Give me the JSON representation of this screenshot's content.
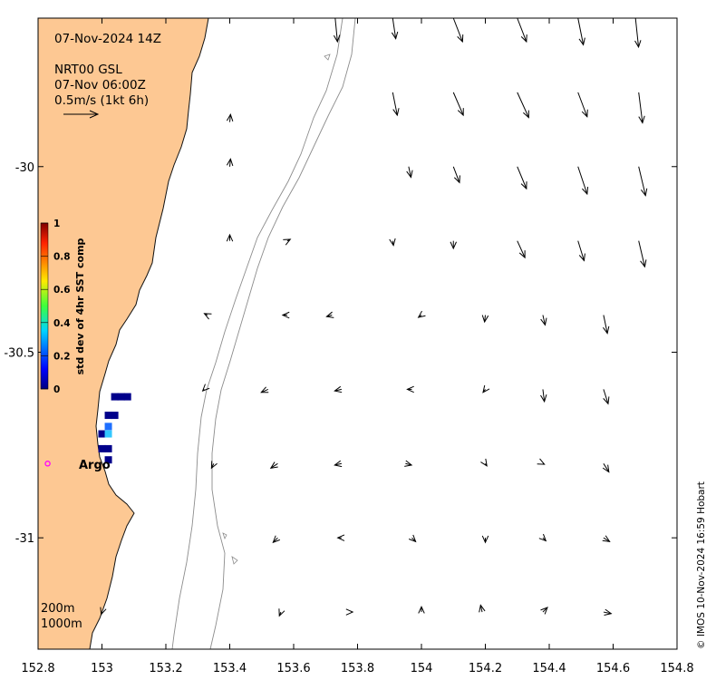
{
  "header": {
    "date_line": "07-Nov-2024 14Z",
    "product": "NRT00 GSL",
    "product_time": "07-Nov 06:00Z",
    "scale_label": "0.5m/s (1kt 6h)"
  },
  "axes": {
    "x_ticks": [
      "152.8",
      "153",
      "153.2",
      "153.4",
      "153.6",
      "153.8",
      "154",
      "154.2",
      "154.4",
      "154.6",
      "154.8"
    ],
    "y_ticks": [
      "-30",
      "-30.5",
      "-31"
    ],
    "x_range": [
      152.8,
      154.8
    ],
    "y_range": [
      -31.3,
      -29.6
    ]
  },
  "colorbar": {
    "title": "std dev of 4hr SST comp",
    "ticks": [
      "0",
      "0.2",
      "0.4",
      "0.6",
      "0.8",
      "1"
    ],
    "range": [
      0,
      1
    ]
  },
  "isobath_labels": [
    "200m",
    "1000m"
  ],
  "argo": {
    "label": "Argo",
    "color": "#ff00ff"
  },
  "credit": "© IMOS 10-Nov-2024 16:59 Hobart",
  "colors": {
    "land": "#fdc893",
    "coast": "#111111",
    "isobath": "#8c8c8c",
    "arrow": "#000000"
  },
  "chart_data": {
    "type": "vector-field",
    "arrows": [
      [
        153.73,
        -29.6,
        0.03,
        -0.31
      ],
      [
        153.91,
        -29.6,
        0.04,
        -0.27
      ],
      [
        154.1,
        -29.6,
        0.12,
        -0.31
      ],
      [
        154.3,
        -29.6,
        0.12,
        -0.31
      ],
      [
        154.49,
        -29.6,
        0.07,
        -0.35
      ],
      [
        154.67,
        -29.6,
        0.04,
        -0.38
      ],
      [
        153.4,
        -29.88,
        0.01,
        0.1
      ],
      [
        153.91,
        -29.8,
        0.06,
        -0.3
      ],
      [
        154.1,
        -29.8,
        0.13,
        -0.3
      ],
      [
        154.3,
        -29.8,
        0.15,
        -0.33
      ],
      [
        154.49,
        -29.8,
        0.12,
        -0.32
      ],
      [
        154.68,
        -29.8,
        0.05,
        -0.4
      ],
      [
        153.4,
        -30.0,
        0.01,
        0.1
      ],
      [
        153.96,
        -30.0,
        0.03,
        -0.14
      ],
      [
        154.1,
        -30.0,
        0.08,
        -0.21
      ],
      [
        154.3,
        -30.0,
        0.12,
        -0.29
      ],
      [
        154.49,
        -30.0,
        0.12,
        -0.36
      ],
      [
        154.68,
        -30.0,
        0.09,
        -0.38
      ],
      [
        153.4,
        -30.2,
        0.0,
        0.08
      ],
      [
        153.58,
        -30.2,
        0.04,
        0.02
      ],
      [
        153.91,
        -30.2,
        0.01,
        -0.06
      ],
      [
        154.1,
        -30.2,
        0.0,
        -0.1
      ],
      [
        154.3,
        -30.2,
        0.1,
        -0.22
      ],
      [
        154.49,
        -30.2,
        0.08,
        -0.26
      ],
      [
        154.68,
        -30.2,
        0.08,
        -0.34
      ],
      [
        153.33,
        -30.4,
        -0.04,
        0.02
      ],
      [
        153.58,
        -30.4,
        -0.06,
        0.0
      ],
      [
        153.72,
        -30.4,
        -0.07,
        -0.02
      ],
      [
        154.0,
        -30.4,
        -0.04,
        -0.03
      ],
      [
        154.2,
        -30.4,
        -0.01,
        -0.09
      ],
      [
        154.38,
        -30.4,
        0.03,
        -0.13
      ],
      [
        154.57,
        -30.4,
        0.05,
        -0.24
      ],
      [
        153.32,
        -30.6,
        -0.02,
        -0.02
      ],
      [
        153.52,
        -30.6,
        -0.09,
        -0.04
      ],
      [
        153.75,
        -30.6,
        -0.09,
        -0.02
      ],
      [
        153.97,
        -30.6,
        -0.06,
        0.0
      ],
      [
        154.2,
        -30.6,
        -0.03,
        -0.04
      ],
      [
        154.38,
        -30.6,
        0.02,
        -0.16
      ],
      [
        154.57,
        -30.6,
        0.06,
        -0.19
      ],
      [
        153.35,
        -30.8,
        -0.03,
        -0.06
      ],
      [
        153.55,
        -30.8,
        -0.09,
        -0.06
      ],
      [
        153.75,
        -30.8,
        -0.09,
        -0.02
      ],
      [
        153.95,
        -30.8,
        0.08,
        -0.02
      ],
      [
        154.2,
        -30.8,
        0.02,
        -0.03
      ],
      [
        154.38,
        -30.8,
        0.02,
        -0.01
      ],
      [
        154.57,
        -30.8,
        0.07,
        -0.11
      ],
      [
        153.55,
        -31.0,
        -0.06,
        -0.06
      ],
      [
        153.75,
        -31.0,
        -0.05,
        0.0
      ],
      [
        153.97,
        -31.0,
        0.05,
        -0.05
      ],
      [
        154.2,
        -31.0,
        0.0,
        -0.06
      ],
      [
        154.38,
        -31.0,
        0.04,
        -0.04
      ],
      [
        154.57,
        -31.0,
        0.08,
        -0.05
      ],
      [
        153.0,
        -31.2,
        -0.01,
        -0.03
      ],
      [
        153.56,
        -31.2,
        -0.02,
        -0.05
      ],
      [
        153.78,
        -31.2,
        0.02,
        0.0
      ],
      [
        154.0,
        -31.2,
        0.0,
        0.07
      ],
      [
        154.19,
        -31.2,
        -0.02,
        0.09
      ],
      [
        154.38,
        -31.2,
        0.06,
        0.06
      ],
      [
        154.57,
        -31.2,
        0.1,
        -0.02
      ]
    ],
    "sst_std_cells": [
      [
        153.04,
        -30.62,
        0.0
      ],
      [
        153.06,
        -30.62,
        0.0
      ],
      [
        153.08,
        -30.62,
        0.0
      ],
      [
        153.02,
        -30.67,
        0.0
      ],
      [
        153.04,
        -30.67,
        0.0
      ],
      [
        153.02,
        -30.7,
        0.2
      ],
      [
        153.0,
        -30.72,
        0.0
      ],
      [
        153.02,
        -30.72,
        0.3
      ],
      [
        153.0,
        -30.76,
        0.0
      ],
      [
        153.02,
        -30.76,
        0.0
      ],
      [
        153.02,
        -30.79,
        0.0
      ]
    ],
    "argo_position": [
      152.83,
      -30.8
    ]
  }
}
